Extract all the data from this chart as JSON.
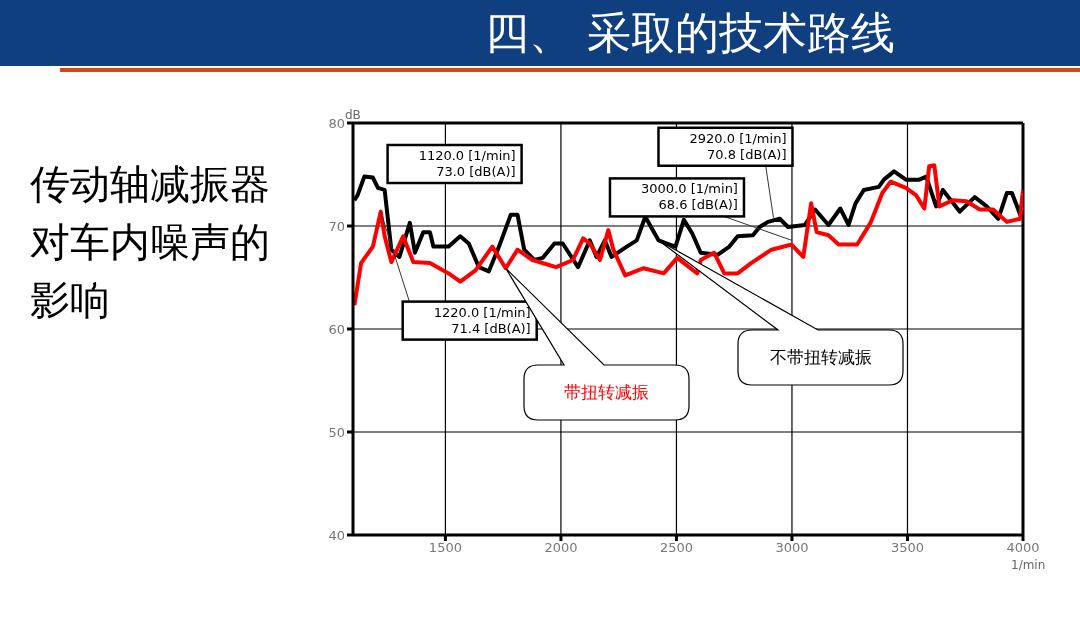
{
  "chart_data": {
    "type": "line",
    "title": "四、 采取的技术路线",
    "subtitle": "传动轴减振器对车内噪声的影响",
    "xlabel": "1/min",
    "ylabel": "dB",
    "xlim": [
      1100,
      4000
    ],
    "xticks": [
      1500,
      2000,
      2500,
      3000,
      3500,
      4000
    ],
    "ylim": [
      40,
      80
    ],
    "yticks": [
      40,
      50,
      60,
      70,
      80
    ],
    "grid": true,
    "legend": false,
    "marker": "none",
    "line_style": "solid",
    "series": [
      {
        "name": "不带扭转减振",
        "color": "#000000",
        "x": [
          1106,
          1120,
          1149,
          1186,
          1208,
          1237,
          1266,
          1301,
          1346,
          1368,
          1404,
          1433,
          1448,
          1484,
          1514,
          1564,
          1601,
          1645,
          1688,
          1732,
          1783,
          1812,
          1841,
          1885,
          1921,
          1972,
          2008,
          2074,
          2125,
          2154,
          2190,
          2219,
          2285,
          2328,
          2365,
          2423,
          2459,
          2496,
          2532,
          2568,
          2605,
          2678,
          2729,
          2765,
          2831,
          2860,
          2896,
          2947,
          2983,
          3056,
          3100,
          3158,
          3209,
          3245,
          3275,
          3311,
          3376,
          3398,
          3442,
          3493,
          3551,
          3581,
          3624,
          3653,
          3726,
          3791,
          3843,
          3893,
          3930,
          3952,
          3988,
          4000
        ],
        "values": [
          72.5,
          73.0,
          74.8,
          74.7,
          73.7,
          73.5,
          67.7,
          67.0,
          70.3,
          67.4,
          69.4,
          69.4,
          68.0,
          68.0,
          68.0,
          69.0,
          68.3,
          66.0,
          65.6,
          68.0,
          71.1,
          71.1,
          67.7,
          66.7,
          66.9,
          68.3,
          68.3,
          66.0,
          68.6,
          67.0,
          68.6,
          67.0,
          68.0,
          68.6,
          70.9,
          68.6,
          68.3,
          68.0,
          70.6,
          69.3,
          67.4,
          67.2,
          68.0,
          69.0,
          69.1,
          69.9,
          70.4,
          70.7,
          69.9,
          70.1,
          71.6,
          70.1,
          71.7,
          70.1,
          72.2,
          73.5,
          73.8,
          74.5,
          75.3,
          74.5,
          74.5,
          74.8,
          71.9,
          73.5,
          71.4,
          72.8,
          71.9,
          70.7,
          73.2,
          73.2,
          71.1,
          73.0
        ]
      },
      {
        "name": "带扭转减振",
        "color": "#ff0000",
        "x": [
          1106,
          1135,
          1186,
          1220,
          1237,
          1266,
          1317,
          1361,
          1433,
          1514,
          1564,
          1630,
          1703,
          1761,
          1812,
          1877,
          1979,
          2052,
          2096,
          2125,
          2169,
          2205,
          2227,
          2278,
          2358,
          2445,
          2503,
          2590,
          2605,
          2663,
          2707,
          2765,
          2823,
          2911,
          2998,
          3049,
          3083,
          3107,
          3158,
          3202,
          3282,
          3340,
          3391,
          3427,
          3493,
          3537,
          3573,
          3594,
          3616,
          3638,
          3696,
          3755,
          3813,
          3871,
          3930,
          3988,
          4000
        ],
        "values": [
          62.3,
          66.4,
          68.0,
          71.4,
          69.0,
          66.5,
          69.0,
          66.5,
          66.4,
          65.4,
          64.6,
          65.7,
          68.0,
          65.9,
          67.7,
          66.7,
          66.0,
          66.7,
          68.8,
          68.3,
          66.7,
          69.6,
          67.7,
          65.2,
          65.9,
          65.4,
          66.9,
          65.4,
          66.7,
          67.4,
          65.4,
          65.4,
          66.4,
          67.7,
          68.2,
          67.0,
          72.2,
          69.4,
          69.1,
          68.2,
          68.2,
          70.3,
          73.2,
          74.3,
          73.7,
          73.0,
          71.7,
          75.8,
          75.9,
          71.9,
          72.5,
          72.4,
          71.6,
          71.6,
          70.4,
          70.7,
          73.5
        ]
      }
    ],
    "annotations": [
      "1120.0 [1/min]\n73.0 [dB(A)]",
      "1220.0 [1/min]\n71.4 [dB(A)]",
      {
        "text": "3000.0 [1/min]\n68.6 [dB(A)]",
        "x": 3000,
        "y": 68.6
      },
      {
        "text": "2920.0 [1/min]\n70.8 [dB(A)]",
        "x": 2920,
        "y": 70.8
      }
    ]
  }
}
